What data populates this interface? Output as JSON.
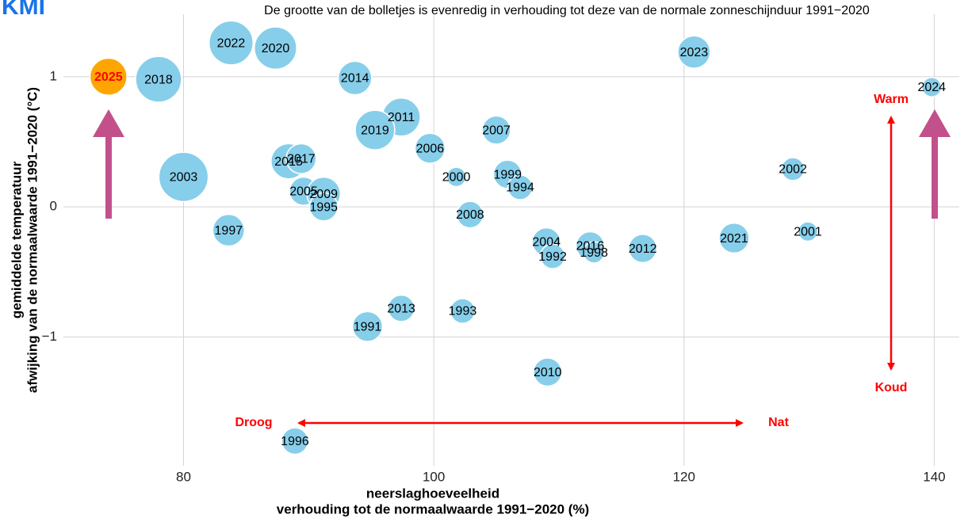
{
  "chart_data": {
    "type": "bubble",
    "logo": "KMI",
    "subtitle": "De grootte van de bolletjes is evenredig in verhouding tot deze van de normale zonneschijnduur 1991−2020",
    "x_label": [
      "neerslaghoeveelheid",
      "verhouding tot de normaalwaarde 1991−2020 (%)"
    ],
    "y_label": [
      "gemiddelde temperatuur",
      "afwijking van de normaalwaarde 1991−2020 (°C)"
    ],
    "annotations": {
      "dry": "Droog",
      "wet": "Nat",
      "warm": "Warm",
      "cold": "Koud"
    },
    "xlim": [
      70.4,
      142.0
    ],
    "ylim": [
      -1.99,
      1.48
    ],
    "xticks": [
      80,
      100,
      120,
      140
    ],
    "yticks": [
      {
        "value": -1,
        "label": "−1"
      },
      0,
      1
    ],
    "grid": true,
    "labels": [
      "2025",
      "2018",
      "2022",
      "2020",
      "2023",
      "2014",
      "2024",
      "2011",
      "2019",
      "2007",
      "2006",
      "2003",
      "2015",
      "2017",
      "2000",
      "1999",
      "1994",
      "2002",
      "2005",
      "2009",
      "1995",
      "2008",
      "1997",
      "2001",
      "2021",
      "2004",
      "1992",
      "2016",
      "1998",
      "2012",
      "2013",
      "1993",
      "1991",
      "2010",
      "1996"
    ],
    "x": [
      74.0,
      78.0,
      83.8,
      87.35,
      120.8,
      93.7,
      139.8,
      97.4,
      95.3,
      105.0,
      99.7,
      80.0,
      88.4,
      89.4,
      101.8,
      105.9,
      106.9,
      128.7,
      89.6,
      91.2,
      91.2,
      102.9,
      83.6,
      129.9,
      124.0,
      109.0,
      109.5,
      112.5,
      112.8,
      116.7,
      97.4,
      102.3,
      94.7,
      109.1,
      88.9
    ],
    "values": [
      1.0,
      0.98,
      1.26,
      1.22,
      1.19,
      0.99,
      0.92,
      0.69,
      0.59,
      0.59,
      0.45,
      0.23,
      0.35,
      0.37,
      0.23,
      0.25,
      0.15,
      0.29,
      0.12,
      0.1,
      0.0,
      -0.06,
      -0.18,
      -0.19,
      -0.24,
      -0.27,
      -0.38,
      -0.3,
      -0.35,
      -0.32,
      -0.78,
      -0.8,
      -0.92,
      -1.27,
      -1.8
    ],
    "sizes": [
      105,
      130,
      125,
      120,
      92,
      95,
      55,
      108,
      112,
      80,
      85,
      140,
      100,
      85,
      55,
      80,
      70,
      65,
      80,
      95,
      80,
      75,
      90,
      55,
      85,
      80,
      70,
      80,
      60,
      80,
      75,
      70,
      85,
      80,
      75
    ],
    "colors": [
      "#ffa500",
      "#87ceeb",
      "#87ceeb",
      "#87ceeb",
      "#87ceeb",
      "#87ceeb",
      "#87ceeb",
      "#87ceeb",
      "#87ceeb",
      "#87ceeb",
      "#87ceeb",
      "#87ceeb",
      "#87ceeb",
      "#87ceeb",
      "#87ceeb",
      "#87ceeb",
      "#87ceeb",
      "#87ceeb",
      "#87ceeb",
      "#87ceeb",
      "#87ceeb",
      "#87ceeb",
      "#87ceeb",
      "#87ceeb",
      "#87ceeb",
      "#87ceeb",
      "#87ceeb",
      "#87ceeb",
      "#87ceeb",
      "#87ceeb",
      "#87ceeb",
      "#87ceeb",
      "#87ceeb",
      "#87ceeb",
      "#87ceeb"
    ],
    "label_colors": [
      "#ff0000",
      "#000000",
      "#000000",
      "#000000",
      "#000000",
      "#000000",
      "#000000",
      "#000000",
      "#000000",
      "#000000",
      "#000000",
      "#000000",
      "#000000",
      "#000000",
      "#000000",
      "#000000",
      "#000000",
      "#000000",
      "#000000",
      "#000000",
      "#000000",
      "#000000",
      "#000000",
      "#000000",
      "#000000",
      "#000000",
      "#000000",
      "#000000",
      "#000000",
      "#000000",
      "#000000",
      "#000000",
      "#000000",
      "#000000",
      "#000000"
    ]
  }
}
